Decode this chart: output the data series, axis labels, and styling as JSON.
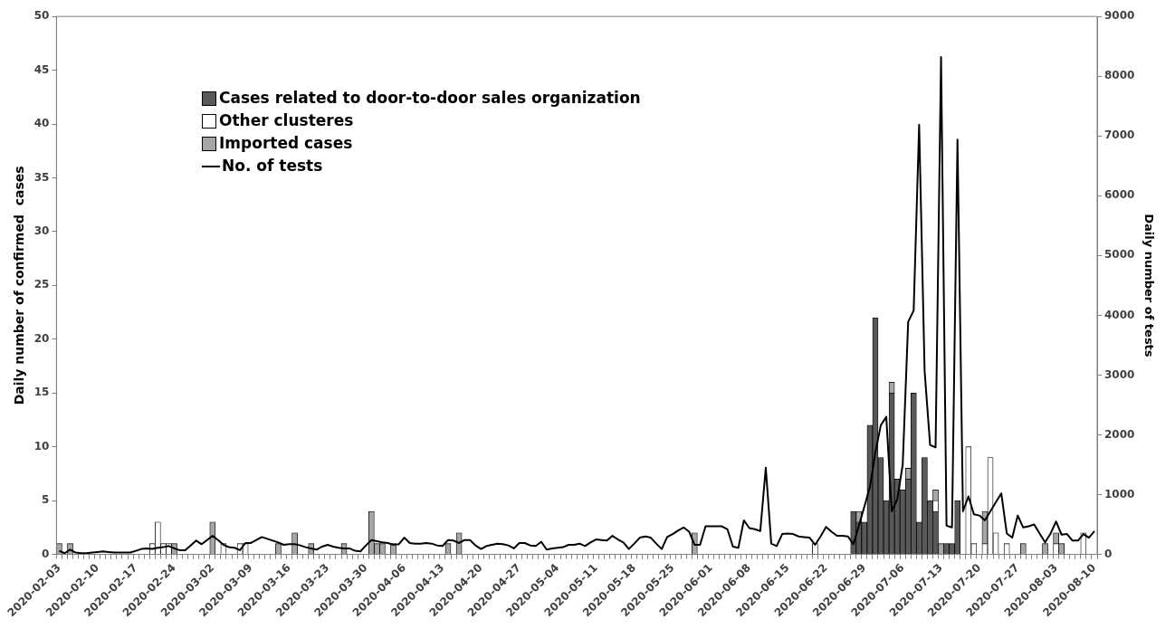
{
  "chart_data": {
    "type": "bar",
    "stacked": true,
    "grid": false,
    "legend": "top left",
    "ylabel": "Daily number of confirmed  cases",
    "y2label": "Daily number of tests",
    "ylim": [
      0,
      50
    ],
    "yticks": [
      0,
      5,
      10,
      15,
      20,
      25,
      30,
      35,
      40,
      45,
      50
    ],
    "y2lim": [
      0,
      9000
    ],
    "y2ticks": [
      0,
      1000,
      2000,
      3000,
      4000,
      5000,
      6000,
      7000,
      8000,
      9000
    ],
    "categories": [
      "2020-02-03",
      null,
      null,
      null,
      null,
      null,
      null,
      "2020-02-10",
      null,
      null,
      null,
      null,
      null,
      null,
      "2020-02-17",
      null,
      null,
      null,
      null,
      null,
      null,
      "2020-02-24",
      null,
      null,
      null,
      null,
      null,
      null,
      "2020-03-02",
      null,
      null,
      null,
      null,
      null,
      null,
      "2020-03-09",
      null,
      null,
      null,
      null,
      null,
      null,
      "2020-03-16",
      null,
      null,
      null,
      null,
      null,
      null,
      "2020-03-23",
      null,
      null,
      null,
      null,
      null,
      null,
      "2020-03-30",
      null,
      null,
      null,
      null,
      null,
      null,
      "2020-04-06",
      null,
      null,
      null,
      null,
      null,
      null,
      "2020-04-13",
      null,
      null,
      null,
      null,
      null,
      null,
      "2020-04-20",
      null,
      null,
      null,
      null,
      null,
      null,
      "2020-04-27",
      null,
      null,
      null,
      null,
      null,
      null,
      "2020-05-04",
      null,
      null,
      null,
      null,
      null,
      null,
      "2020-05-11",
      null,
      null,
      null,
      null,
      null,
      null,
      "2020-05-18",
      null,
      null,
      null,
      null,
      null,
      null,
      "2020-05-25",
      null,
      null,
      null,
      null,
      null,
      null,
      "2020-06-01",
      null,
      null,
      null,
      null,
      null,
      null,
      "2020-06-08",
      null,
      null,
      null,
      null,
      null,
      null,
      "2020-06-15",
      null,
      null,
      null,
      null,
      null,
      null,
      "2020-06-22",
      null,
      null,
      null,
      null,
      null,
      null,
      "2020-06-29",
      null,
      null,
      null,
      null,
      null,
      null,
      "2020-07-06",
      null,
      null,
      null,
      null,
      null,
      null,
      "2020-07-13",
      null,
      null,
      null,
      null,
      null,
      null,
      "2020-07-20",
      null,
      null,
      null,
      null,
      null,
      null,
      "2020-07-27",
      null,
      null,
      null,
      null,
      null,
      null,
      "2020-08-03",
      null,
      null,
      null,
      null,
      null,
      null,
      "2020-08-10"
    ],
    "series": [
      {
        "name": "Cases related to door-to-door sales organization",
        "color": "#595959",
        "values": [
          null,
          null,
          null,
          null,
          null,
          null,
          null,
          null,
          null,
          null,
          null,
          null,
          null,
          null,
          null,
          null,
          null,
          null,
          null,
          null,
          null,
          null,
          null,
          null,
          null,
          null,
          null,
          null,
          null,
          null,
          null,
          null,
          null,
          null,
          null,
          null,
          null,
          null,
          null,
          null,
          null,
          null,
          null,
          null,
          null,
          null,
          null,
          null,
          null,
          null,
          null,
          null,
          null,
          null,
          null,
          null,
          null,
          null,
          null,
          null,
          null,
          null,
          null,
          null,
          null,
          null,
          null,
          null,
          null,
          null,
          null,
          null,
          null,
          null,
          null,
          null,
          null,
          null,
          null,
          null,
          null,
          null,
          null,
          null,
          null,
          null,
          null,
          null,
          null,
          null,
          null,
          null,
          null,
          null,
          null,
          null,
          null,
          null,
          null,
          null,
          null,
          null,
          null,
          null,
          null,
          null,
          null,
          null,
          null,
          null,
          null,
          null,
          null,
          null,
          null,
          null,
          null,
          null,
          null,
          null,
          null,
          null,
          null,
          null,
          null,
          null,
          null,
          null,
          null,
          null,
          null,
          null,
          null,
          null,
          null,
          null,
          null,
          null,
          null,
          null,
          null,
          null,
          null,
          null,
          null,
          4,
          3,
          3,
          12,
          22,
          9,
          5,
          15,
          7,
          6,
          7,
          15,
          3,
          9,
          5,
          4,
          null,
          1,
          1,
          5,
          null,
          null,
          null,
          null,
          null,
          null,
          null,
          null,
          null,
          null,
          null,
          null,
          null,
          null,
          null,
          null,
          null,
          null,
          null,
          null,
          null,
          null,
          null,
          null,
          null
        ]
      },
      {
        "name": "Other clusteres",
        "color": "#ffffff",
        "values": [
          null,
          null,
          null,
          null,
          null,
          null,
          null,
          null,
          null,
          null,
          null,
          null,
          null,
          null,
          null,
          null,
          null,
          1,
          3,
          1,
          1,
          null,
          null,
          null,
          null,
          null,
          null,
          null,
          null,
          null,
          1,
          null,
          null,
          1,
          1,
          null,
          null,
          null,
          null,
          null,
          null,
          null,
          null,
          null,
          null,
          null,
          null,
          null,
          null,
          null,
          null,
          null,
          null,
          null,
          null,
          null,
          null,
          null,
          null,
          null,
          null,
          null,
          null,
          null,
          null,
          null,
          null,
          null,
          null,
          null,
          null,
          null,
          null,
          null,
          null,
          null,
          null,
          null,
          null,
          null,
          null,
          null,
          null,
          null,
          null,
          null,
          null,
          null,
          null,
          null,
          null,
          null,
          null,
          null,
          null,
          null,
          null,
          null,
          null,
          null,
          null,
          null,
          null,
          null,
          null,
          null,
          null,
          null,
          null,
          null,
          null,
          null,
          null,
          null,
          null,
          null,
          null,
          null,
          null,
          null,
          null,
          null,
          null,
          null,
          null,
          null,
          null,
          null,
          null,
          null,
          null,
          null,
          null,
          null,
          null,
          null,
          null,
          null,
          1,
          null,
          null,
          null,
          null,
          null,
          null,
          null,
          null,
          null,
          null,
          null,
          null,
          null,
          null,
          null,
          null,
          null,
          null,
          null,
          null,
          null,
          1,
          null,
          null,
          null,
          null,
          null,
          10,
          1,
          null,
          1,
          9,
          2,
          null,
          1,
          null,
          null,
          null,
          null,
          null,
          null,
          null,
          null,
          1,
          null,
          null,
          null,
          null,
          2,
          null,
          null
        ]
      },
      {
        "name": "Imported cases",
        "color": "#a6a6a6",
        "values": [
          1,
          null,
          1,
          null,
          null,
          null,
          null,
          null,
          null,
          null,
          null,
          null,
          null,
          null,
          null,
          null,
          null,
          null,
          null,
          null,
          null,
          1,
          null,
          null,
          null,
          null,
          null,
          null,
          3,
          null,
          null,
          null,
          null,
          null,
          null,
          null,
          null,
          null,
          null,
          null,
          1,
          null,
          null,
          2,
          null,
          null,
          1,
          null,
          null,
          null,
          null,
          null,
          1,
          null,
          null,
          null,
          null,
          4,
          1,
          1,
          null,
          1,
          null,
          null,
          null,
          null,
          null,
          null,
          null,
          null,
          null,
          1,
          null,
          2,
          null,
          null,
          null,
          null,
          null,
          null,
          null,
          null,
          null,
          null,
          null,
          null,
          null,
          null,
          null,
          null,
          null,
          null,
          null,
          null,
          null,
          null,
          null,
          null,
          null,
          null,
          null,
          null,
          null,
          null,
          null,
          null,
          null,
          null,
          null,
          null,
          null,
          null,
          null,
          null,
          null,
          null,
          2,
          null,
          null,
          null,
          null,
          null,
          null,
          null,
          null,
          null,
          null,
          null,
          null,
          null,
          null,
          null,
          null,
          null,
          null,
          null,
          null,
          null,
          null,
          null,
          null,
          null,
          null,
          null,
          null,
          null,
          1,
          null,
          null,
          null,
          null,
          null,
          1,
          null,
          null,
          1,
          null,
          null,
          null,
          null,
          1,
          1,
          null,
          null,
          null,
          null,
          null,
          null,
          null,
          3,
          null,
          null,
          null,
          null,
          null,
          null,
          1,
          null,
          null,
          null,
          1,
          null,
          1,
          1,
          null,
          null,
          null,
          null,
          null,
          null
        ]
      },
      {
        "name": "No. of tests",
        "type": "line",
        "axis": "y2",
        "color": "#000000",
        "values": [
          60,
          20,
          80,
          30,
          20,
          20,
          30,
          40,
          50,
          40,
          30,
          30,
          30,
          30,
          60,
          90,
          100,
          90,
          110,
          120,
          140,
          100,
          70,
          70,
          150,
          230,
          170,
          240,
          310,
          240,
          160,
          120,
          110,
          70,
          190,
          190,
          240,
          290,
          260,
          230,
          200,
          160,
          170,
          170,
          150,
          120,
          100,
          80,
          130,
          160,
          130,
          110,
          100,
          100,
          60,
          50,
          150,
          240,
          220,
          200,
          190,
          160,
          170,
          280,
          190,
          180,
          180,
          190,
          180,
          150,
          140,
          240,
          230,
          190,
          240,
          240,
          150,
          90,
          140,
          160,
          180,
          170,
          150,
          100,
          190,
          190,
          150,
          140,
          210,
          80,
          100,
          110,
          120,
          160,
          160,
          180,
          140,
          200,
          250,
          240,
          230,
          310,
          250,
          200,
          90,
          180,
          280,
          300,
          280,
          180,
          90,
          290,
          340,
          400,
          450,
          380,
          160,
          160,
          470,
          470,
          470,
          470,
          420,
          130,
          110,
          570,
          440,
          420,
          390,
          1450,
          180,
          140,
          340,
          350,
          340,
          300,
          290,
          280,
          160,
          300,
          460,
          380,
          310,
          310,
          300,
          170,
          480,
          800,
          1120,
          1700,
          2160,
          2300,
          720,
          920,
          1500,
          3890,
          4080,
          7190,
          3070,
          1830,
          1790,
          8320,
          480,
          450,
          6940,
          720,
          970,
          670,
          650,
          570,
          720,
          870,
          1020,
          350,
          280,
          650,
          450,
          470,
          500,
          350,
          200,
          350,
          550,
          330,
          340,
          230,
          230,
          340,
          280,
          390
        ]
      }
    ]
  }
}
